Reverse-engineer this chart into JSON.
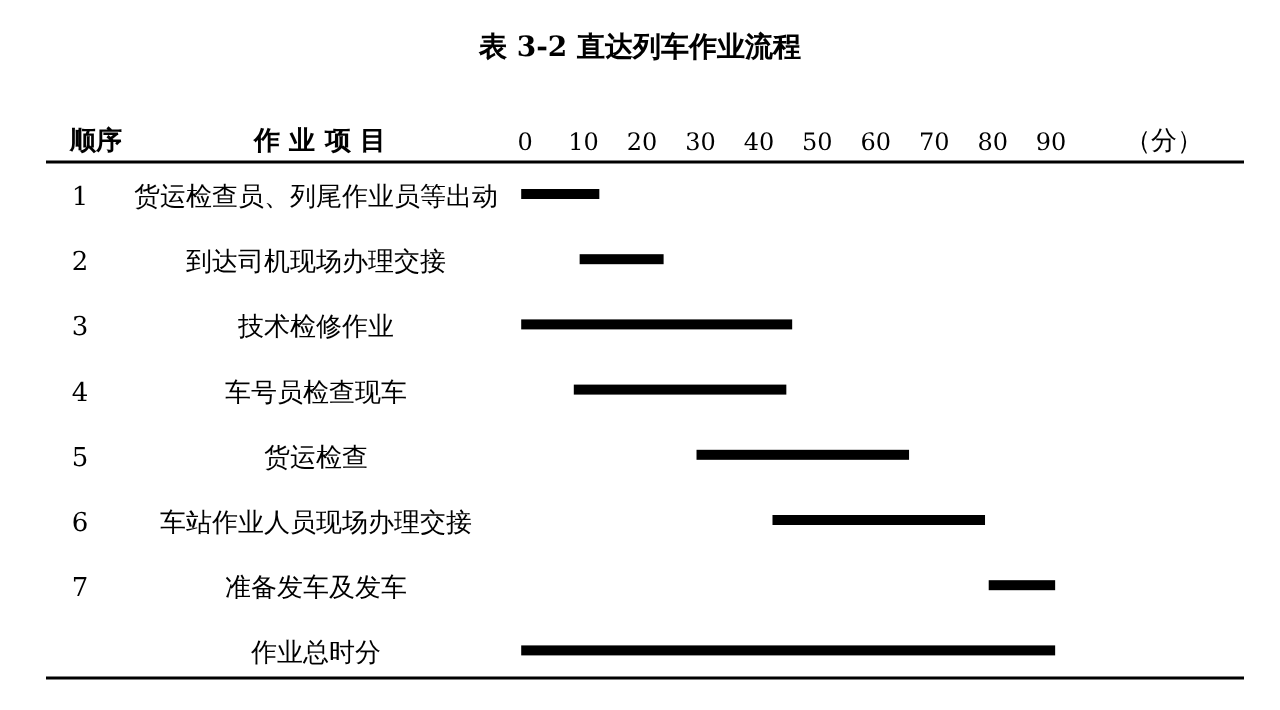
{
  "chart_data": {
    "type": "bar",
    "orientation": "horizontal",
    "title": "表 3-2 直达列车作业流程",
    "ylabel": "作 业 项 目",
    "xlabel": "（分）",
    "categories": [
      "货运检查员、列尾作业员等出动",
      "到达司机现场办理交接",
      "技术检修作业",
      "车号员检查现车",
      "货运检查",
      "车站作业人员现场办理交接",
      "准备发车及发车",
      "作业总时分"
    ],
    "base": [
      0,
      10,
      0,
      9,
      30,
      43,
      80,
      0
    ],
    "values": [
      12,
      13,
      45,
      35,
      35,
      35,
      10,
      90
    ],
    "color": "#000000",
    "xlim": [
      -82,
      123
    ],
    "xticks": [
      0,
      10,
      20,
      30,
      40,
      50,
      60,
      70,
      80,
      90
    ],
    "annotations": [
      "顺序",
      "1",
      "2",
      "3",
      "4",
      "5",
      "6",
      "7"
    ]
  }
}
